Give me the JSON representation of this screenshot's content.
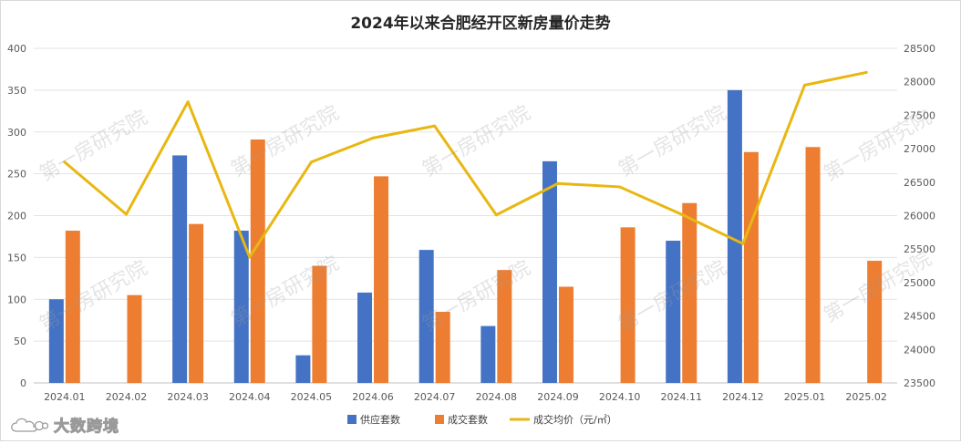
{
  "chart_data": {
    "type": "bar+line",
    "title": "2024年以来合肥经开区新房量价走势",
    "categories": [
      "2024.01",
      "2024.02",
      "2024.03",
      "2024.04",
      "2024.05",
      "2024.06",
      "2024.07",
      "2024.08",
      "2024.09",
      "2024.10",
      "2024.11",
      "2024.12",
      "2025.01",
      "2025.02"
    ],
    "series": [
      {
        "name": "供应套数",
        "type": "bar",
        "axis": "left",
        "color": "#4472C4",
        "values": [
          100,
          null,
          272,
          182,
          33,
          108,
          159,
          68,
          265,
          null,
          170,
          350,
          null,
          null
        ]
      },
      {
        "name": "成交套数",
        "type": "bar",
        "axis": "left",
        "color": "#ED7D31",
        "values": [
          182,
          105,
          190,
          291,
          140,
          247,
          85,
          135,
          115,
          186,
          215,
          276,
          282,
          146
        ]
      },
      {
        "name": "成交均价（元/㎡）",
        "type": "line",
        "axis": "right",
        "color": "#E8B711",
        "values": [
          26800,
          26020,
          27700,
          25380,
          26800,
          27160,
          27340,
          26010,
          26480,
          26430,
          26020,
          25580,
          27950,
          28140
        ]
      }
    ],
    "y_left": {
      "min": 0,
      "max": 400,
      "step": 50,
      "ticks": [
        "0",
        "50",
        "100",
        "150",
        "200",
        "250",
        "300",
        "350",
        "400"
      ]
    },
    "y_right": {
      "min": 23500,
      "max": 28500,
      "step": 500,
      "ticks": [
        "23500",
        "24000",
        "24500",
        "25000",
        "25500",
        "26000",
        "26500",
        "27000",
        "27500",
        "28000",
        "28500"
      ]
    },
    "legend_position": "bottom",
    "gridlines": true
  },
  "watermark": {
    "text": "第一房研究院"
  },
  "brand": {
    "text": "大数跨境"
  }
}
